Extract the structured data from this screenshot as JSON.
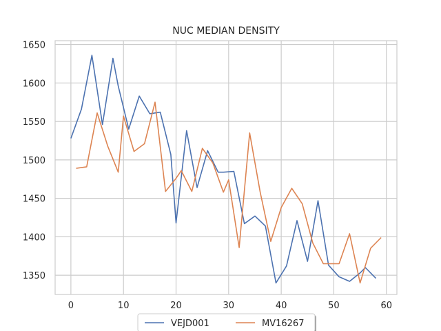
{
  "chart_data": {
    "type": "line",
    "title": "NUC MEDIAN DENSITY",
    "xlabel": "",
    "ylabel": "",
    "xlim": [
      -3,
      62
    ],
    "ylim": [
      1325,
      1655
    ],
    "xticks": [
      0,
      10,
      20,
      30,
      40,
      50,
      60
    ],
    "yticks": [
      1350,
      1400,
      1450,
      1500,
      1550,
      1600,
      1650
    ],
    "grid": true,
    "legend_position": "bottom-center",
    "series": [
      {
        "name": "VEJD001",
        "color": "#4c72b0",
        "x": [
          0,
          2,
          4,
          6,
          8,
          9,
          11,
          13,
          15,
          17,
          19,
          20,
          22,
          24,
          26,
          28,
          29,
          31,
          33,
          35,
          37,
          39,
          41,
          43,
          45,
          47,
          49,
          51,
          53,
          55,
          56,
          58
        ],
        "y": [
          1528,
          1566,
          1636,
          1546,
          1632,
          1596,
          1540,
          1583,
          1560,
          1562,
          1507,
          1418,
          1538,
          1464,
          1512,
          1484,
          1484,
          1485,
          1417,
          1427,
          1414,
          1340,
          1362,
          1421,
          1368,
          1447,
          1363,
          1348,
          1342,
          1353,
          1360,
          1346
        ]
      },
      {
        "name": "MV16267",
        "color": "#dd8452",
        "x": [
          1,
          3,
          5,
          7,
          9,
          10,
          12,
          14,
          16,
          18,
          20,
          21,
          23,
          25,
          27,
          29,
          30,
          32,
          34,
          36,
          38,
          40,
          42,
          44,
          46,
          48,
          50,
          51,
          53,
          55,
          57,
          59
        ],
        "y": [
          1489,
          1491,
          1561,
          1518,
          1484,
          1557,
          1511,
          1521,
          1575,
          1459,
          1476,
          1486,
          1459,
          1515,
          1496,
          1458,
          1474,
          1386,
          1535,
          1458,
          1394,
          1438,
          1463,
          1443,
          1392,
          1365,
          1365,
          1365,
          1404,
          1340,
          1385,
          1399
        ]
      }
    ]
  }
}
